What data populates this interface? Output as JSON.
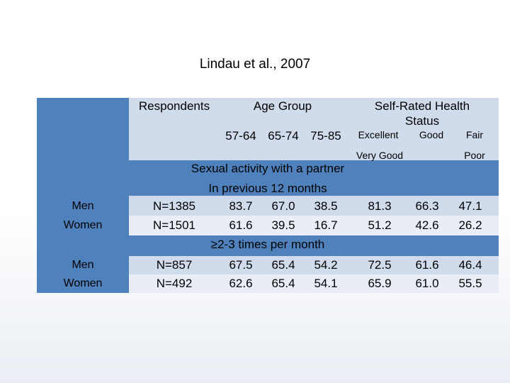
{
  "slide": {
    "title": "Lindau et al., 2007"
  },
  "table": {
    "header": {
      "respondents": "Respondents",
      "age_group": "Age Group",
      "health_line1": "Self-Rated Health",
      "health_line2": "Status",
      "age_cols": [
        "57-64",
        "65-74",
        "75-85"
      ],
      "health_cols": [
        "Excellent",
        "Good",
        "Fair"
      ],
      "health_sub": [
        "Very Good",
        "Poor"
      ]
    },
    "section1": {
      "line1": "Sexual activity with a partner",
      "line2": "In previous 12 months"
    },
    "section2": {
      "symbol": "≥",
      "label": "2-3 times per month"
    },
    "rows": [
      {
        "group": "Men",
        "n": "N=1385",
        "ages": [
          "83.7",
          "67.0",
          "38.5"
        ],
        "health": [
          "81.3",
          "66.3",
          "47.1"
        ]
      },
      {
        "group": "Women",
        "n": "N=1501",
        "ages": [
          "61.6",
          "39.5",
          "16.7"
        ],
        "health": [
          "51.2",
          "42.6",
          "26.2"
        ]
      },
      {
        "group": "Men",
        "n": "N=857",
        "ages": [
          "67.5",
          "65.4",
          "54.2"
        ],
        "health": [
          "72.5",
          "61.6",
          "46.4"
        ]
      },
      {
        "group": "Women",
        "n": "N=492",
        "ages": [
          "62.6",
          "65.4",
          "54.1"
        ],
        "health": [
          "65.9",
          "61.0",
          "55.5"
        ]
      }
    ]
  }
}
